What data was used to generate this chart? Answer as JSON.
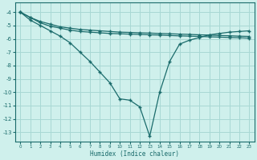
{
  "xlabel": "Humidex (Indice chaleur)",
  "background_color": "#cff0ec",
  "grid_color": "#a8d8d4",
  "line_color": "#1a6b6b",
  "xlim": [
    -0.5,
    23.5
  ],
  "ylim": [
    -13.7,
    -3.3
  ],
  "yticks": [
    -4,
    -5,
    -6,
    -7,
    -8,
    -9,
    -10,
    -11,
    -12,
    -13
  ],
  "xticks": [
    0,
    1,
    2,
    3,
    4,
    5,
    6,
    7,
    8,
    9,
    10,
    11,
    12,
    13,
    14,
    15,
    16,
    17,
    18,
    19,
    20,
    21,
    22,
    23
  ],
  "series1_x": [
    0,
    1,
    2,
    3,
    4,
    5,
    6,
    7,
    8,
    9,
    10,
    11,
    12,
    13,
    14,
    15,
    16,
    17,
    18,
    19,
    20,
    21,
    22,
    23
  ],
  "series1_y": [
    -4.0,
    -4.4,
    -4.7,
    -4.9,
    -5.1,
    -5.2,
    -5.3,
    -5.35,
    -5.4,
    -5.45,
    -5.5,
    -5.52,
    -5.55,
    -5.57,
    -5.6,
    -5.62,
    -5.65,
    -5.67,
    -5.7,
    -5.72,
    -5.75,
    -5.77,
    -5.8,
    -5.82
  ],
  "series2_x": [
    0,
    1,
    2,
    3,
    4,
    5,
    6,
    7,
    8,
    9,
    10,
    11,
    12,
    13,
    14,
    15,
    16,
    17,
    18,
    19,
    20,
    21,
    22,
    23
  ],
  "series2_y": [
    -4.0,
    -4.6,
    -5.0,
    -5.4,
    -5.8,
    -6.3,
    -7.0,
    -7.7,
    -8.5,
    -9.3,
    -10.5,
    -10.6,
    -11.1,
    -13.3,
    -10.0,
    -7.7,
    -6.4,
    -6.1,
    -5.9,
    -5.7,
    -5.6,
    -5.5,
    -5.45,
    -5.4
  ],
  "series3_x": [
    0,
    1,
    2,
    3,
    4,
    5,
    6,
    7,
    8,
    9,
    10,
    11,
    12,
    13,
    14,
    15,
    16,
    17,
    18,
    19,
    20,
    21,
    22,
    23
  ],
  "series3_y": [
    -4.0,
    -4.4,
    -4.8,
    -5.05,
    -5.2,
    -5.35,
    -5.45,
    -5.5,
    -5.55,
    -5.6,
    -5.62,
    -5.65,
    -5.67,
    -5.7,
    -5.72,
    -5.75,
    -5.78,
    -5.8,
    -5.82,
    -5.85,
    -5.87,
    -5.9,
    -5.92,
    -5.95
  ]
}
